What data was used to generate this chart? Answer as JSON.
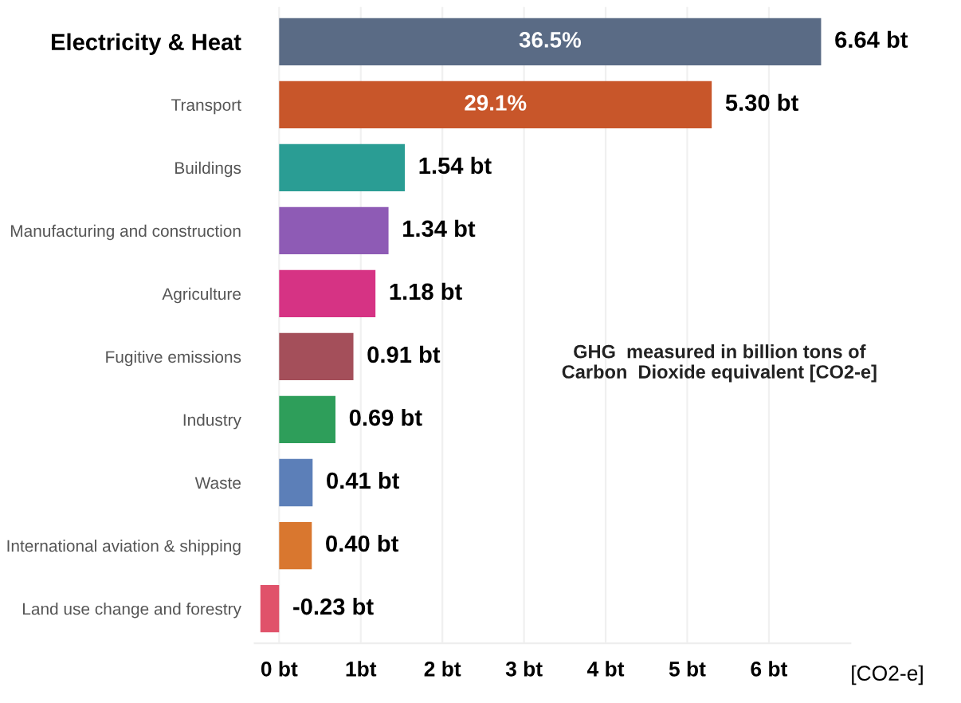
{
  "chart_data": {
    "type": "bar",
    "orientation": "horizontal",
    "categories": [
      "Electricity & Heat",
      "Transport",
      "Buildings",
      "Manufacturing and construction",
      "Agriculture",
      "Fugitive emissions",
      "Industry",
      "Waste",
      "International aviation & shipping",
      "Land use change and forestry"
    ],
    "values": [
      6.64,
      5.3,
      1.54,
      1.34,
      1.18,
      0.91,
      0.69,
      0.41,
      0.4,
      -0.23
    ],
    "colors": [
      "#5a6b85",
      "#c8562a",
      "#2a9d94",
      "#8e5bb5",
      "#d63384",
      "#a44f5a",
      "#2e9e5a",
      "#5c7fb8",
      "#d9772f",
      "#e0526a"
    ],
    "value_labels": [
      "6.64 bt",
      "5.30 bt",
      "1.54 bt",
      "1.34 bt",
      "1.18 bt",
      "0.91 bt",
      "0.69 bt",
      "0.41 bt",
      "0.40 bt",
      "-0.23 bt"
    ],
    "xlim": [
      -0.3,
      7.0
    ],
    "xticks": [
      {
        "value": 0,
        "label": "0 bt"
      },
      {
        "value": 1,
        "label": "1bt"
      },
      {
        "value": 2,
        "label": "2 bt"
      },
      {
        "value": 3,
        "label": "3 bt"
      },
      {
        "value": 4,
        "label": "4 bt"
      },
      {
        "value": 5,
        "label": "5 bt"
      },
      {
        "value": 6,
        "label": "6 bt"
      }
    ],
    "xlabel": "[CO2-e]",
    "grid": "x",
    "annotations": [
      {
        "text": "36.5%",
        "x": 3.32,
        "y": "Electricity & Heat"
      },
      {
        "text": "29.1%",
        "x": 2.65,
        "y": "Transport"
      },
      "GHG  measured in billion tons of\nCarbon  Dioxide equivalent [CO2-e]"
    ]
  }
}
